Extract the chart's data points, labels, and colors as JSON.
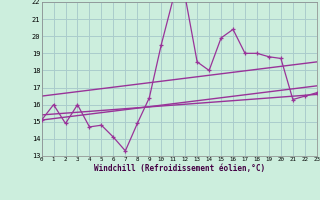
{
  "xlabel": "Windchill (Refroidissement éolien,°C)",
  "bg_color": "#cceedd",
  "line_color": "#993399",
  "grid_color": "#aacccc",
  "xmin": 0,
  "xmax": 23,
  "ymin": 13,
  "ymax": 22,
  "series1_x": [
    0,
    1,
    2,
    3,
    4,
    5,
    6,
    7,
    8,
    9,
    10,
    11,
    12,
    13,
    14,
    15,
    16,
    17,
    18,
    19,
    20,
    21,
    22,
    23
  ],
  "series1_y": [
    15.1,
    16.0,
    14.9,
    16.0,
    14.7,
    14.8,
    14.1,
    13.3,
    14.9,
    16.4,
    19.5,
    22.2,
    22.3,
    18.5,
    18.0,
    19.9,
    20.4,
    19.0,
    19.0,
    18.8,
    18.7,
    16.3,
    16.5,
    16.7
  ],
  "trend1_x": [
    0,
    23
  ],
  "trend1_y": [
    15.1,
    17.1
  ],
  "trend2_x": [
    0,
    23
  ],
  "trend2_y": [
    15.4,
    16.6
  ],
  "trend3_x": [
    0,
    23
  ],
  "trend3_y": [
    16.5,
    18.5
  ],
  "xtick_labels": [
    "0",
    "1",
    "2",
    "3",
    "4",
    "5",
    "6",
    "7",
    "8",
    "9",
    "10",
    "11",
    "12",
    "13",
    "14",
    "15",
    "16",
    "17",
    "18",
    "19",
    "20",
    "21",
    "22",
    "23"
  ],
  "ytick_labels": [
    "13",
    "14",
    "15",
    "16",
    "17",
    "18",
    "19",
    "20",
    "21",
    "22"
  ]
}
